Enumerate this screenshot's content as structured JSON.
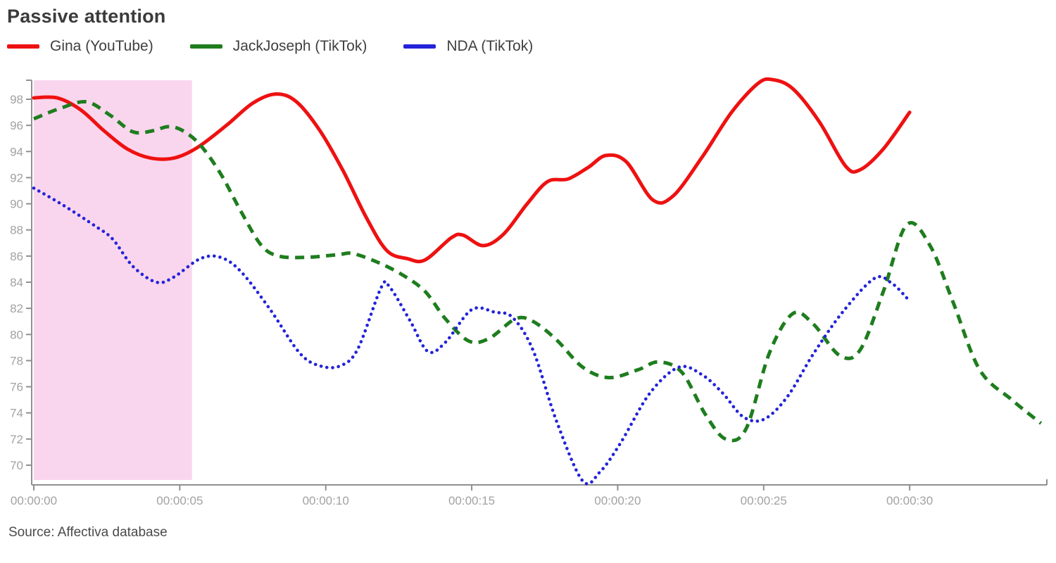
{
  "chart_data": {
    "type": "line",
    "title": "Passive attention",
    "source": "Source: Affectiva database",
    "xlabel": "",
    "ylabel": "",
    "x_unit": "time (hh:mm:ss)",
    "x_range_seconds": [
      0,
      34.7
    ],
    "y_range": [
      68.5,
      99.6
    ],
    "y_ticks": [
      70,
      72,
      74,
      76,
      78,
      80,
      82,
      84,
      86,
      88,
      90,
      92,
      94,
      96,
      98
    ],
    "x_ticks": [
      {
        "seconds": 0,
        "label": "00:00:00"
      },
      {
        "seconds": 5,
        "label": "00:00:05"
      },
      {
        "seconds": 10,
        "label": "00:00:10"
      },
      {
        "seconds": 15,
        "label": "00:00:15"
      },
      {
        "seconds": 20,
        "label": "00:00:20"
      },
      {
        "seconds": 25,
        "label": "00:00:25"
      },
      {
        "seconds": 30,
        "label": "00:00:30"
      }
    ],
    "grid": "off",
    "legend_position": "top-left",
    "highlight_region": {
      "start_seconds": 0,
      "end_seconds": 5.42,
      "color": "#fad6ee"
    },
    "axis_color": "#909090",
    "tick_label_color": "#a2a2a2",
    "series": [
      {
        "name": "Gina (YouTube)",
        "color": "#ee1111",
        "line_style": "solid",
        "points": [
          [
            0,
            98.1
          ],
          [
            0.8,
            98.1
          ],
          [
            1.6,
            97.2
          ],
          [
            2.4,
            95.6
          ],
          [
            3.2,
            94.2
          ],
          [
            4.0,
            93.5
          ],
          [
            4.8,
            93.5
          ],
          [
            5.6,
            94.3
          ],
          [
            6.6,
            96.0
          ],
          [
            7.5,
            97.7
          ],
          [
            8.3,
            98.4
          ],
          [
            9.0,
            97.8
          ],
          [
            9.8,
            95.6
          ],
          [
            10.6,
            92.5
          ],
          [
            11.4,
            88.9
          ],
          [
            12.1,
            86.4
          ],
          [
            12.8,
            85.8
          ],
          [
            13.4,
            85.7
          ],
          [
            14.3,
            87.4
          ],
          [
            14.7,
            87.6
          ],
          [
            15.4,
            86.8
          ],
          [
            16.1,
            87.7
          ],
          [
            16.9,
            90.0
          ],
          [
            17.6,
            91.7
          ],
          [
            18.3,
            91.9
          ],
          [
            19.0,
            92.8
          ],
          [
            19.6,
            93.7
          ],
          [
            20.3,
            93.2
          ],
          [
            21.2,
            90.3
          ],
          [
            21.9,
            90.6
          ],
          [
            22.9,
            93.6
          ],
          [
            23.9,
            97.0
          ],
          [
            24.8,
            99.2
          ],
          [
            25.3,
            99.5
          ],
          [
            26.0,
            98.8
          ],
          [
            26.9,
            96.3
          ],
          [
            27.8,
            92.9
          ],
          [
            28.3,
            92.6
          ],
          [
            29.1,
            94.2
          ],
          [
            30.0,
            97.0
          ]
        ]
      },
      {
        "name": "JackJoseph (TikTok)",
        "color": "#1e7d1e",
        "line_style": "dashed",
        "points": [
          [
            0,
            96.5
          ],
          [
            0.9,
            97.3
          ],
          [
            1.8,
            97.8
          ],
          [
            2.6,
            96.8
          ],
          [
            3.4,
            95.5
          ],
          [
            4.1,
            95.6
          ],
          [
            4.6,
            95.9
          ],
          [
            5.1,
            95.6
          ],
          [
            5.7,
            94.5
          ],
          [
            6.4,
            92.3
          ],
          [
            7.1,
            89.4
          ],
          [
            7.8,
            86.8
          ],
          [
            8.4,
            86.0
          ],
          [
            9.3,
            85.9
          ],
          [
            10.4,
            86.1
          ],
          [
            10.9,
            86.2
          ],
          [
            11.7,
            85.6
          ],
          [
            12.6,
            84.6
          ],
          [
            13.4,
            83.3
          ],
          [
            14.1,
            81.2
          ],
          [
            14.9,
            79.5
          ],
          [
            15.6,
            79.7
          ],
          [
            16.5,
            81.2
          ],
          [
            17.1,
            81.0
          ],
          [
            17.9,
            79.6
          ],
          [
            18.8,
            77.5
          ],
          [
            19.7,
            76.7
          ],
          [
            20.7,
            77.3
          ],
          [
            21.4,
            77.9
          ],
          [
            22.2,
            77.1
          ],
          [
            23.0,
            73.9
          ],
          [
            23.7,
            72.0
          ],
          [
            24.4,
            72.8
          ],
          [
            25.2,
            78.6
          ],
          [
            26.0,
            81.6
          ],
          [
            26.7,
            80.8
          ],
          [
            27.6,
            78.4
          ],
          [
            28.3,
            78.8
          ],
          [
            29.1,
            83.3
          ],
          [
            29.9,
            88.4
          ],
          [
            30.7,
            86.8
          ],
          [
            31.5,
            82.4
          ],
          [
            32.4,
            77.3
          ],
          [
            33.5,
            75.0
          ],
          [
            34.5,
            73.2
          ]
        ]
      },
      {
        "name": "NDA (TikTok)",
        "color": "#2323d9",
        "line_style": "dotted",
        "points": [
          [
            0,
            91.2
          ],
          [
            1.0,
            89.9
          ],
          [
            2.1,
            88.3
          ],
          [
            2.7,
            87.3
          ],
          [
            3.4,
            85.2
          ],
          [
            4.2,
            84.0
          ],
          [
            4.8,
            84.4
          ],
          [
            5.7,
            85.8
          ],
          [
            6.4,
            85.9
          ],
          [
            7.1,
            84.8
          ],
          [
            8.1,
            81.9
          ],
          [
            9.1,
            78.6
          ],
          [
            9.8,
            77.6
          ],
          [
            10.5,
            77.6
          ],
          [
            11.1,
            78.9
          ],
          [
            11.9,
            83.6
          ],
          [
            12.2,
            83.6
          ],
          [
            12.9,
            81.0
          ],
          [
            13.5,
            78.7
          ],
          [
            14.1,
            79.4
          ],
          [
            15.0,
            81.9
          ],
          [
            15.8,
            81.7
          ],
          [
            16.4,
            81.3
          ],
          [
            17.1,
            78.8
          ],
          [
            17.9,
            73.4
          ],
          [
            18.8,
            68.8
          ],
          [
            19.4,
            69.5
          ],
          [
            20.1,
            71.7
          ],
          [
            21.1,
            75.5
          ],
          [
            22.1,
            77.5
          ],
          [
            22.9,
            76.9
          ],
          [
            23.6,
            75.5
          ],
          [
            24.3,
            73.7
          ],
          [
            25.0,
            73.5
          ],
          [
            25.8,
            75.2
          ],
          [
            26.7,
            78.5
          ],
          [
            27.7,
            81.7
          ],
          [
            28.8,
            84.3
          ],
          [
            29.4,
            83.9
          ],
          [
            29.9,
            82.8
          ]
        ]
      }
    ]
  }
}
